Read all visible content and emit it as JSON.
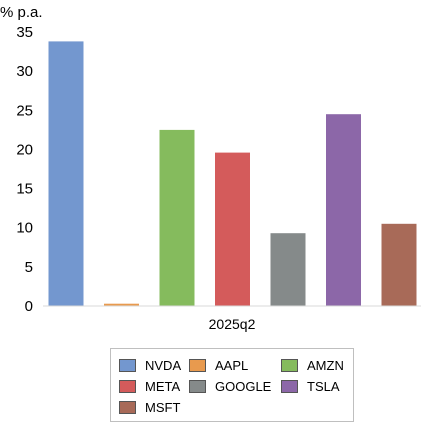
{
  "chart_data": {
    "type": "bar",
    "unit_label": "% p.a.",
    "categories": [
      "2025q2"
    ],
    "ylim": [
      0,
      35
    ],
    "yticks": [
      0,
      5,
      10,
      15,
      20,
      25,
      30,
      35
    ],
    "grid": false,
    "legend_position": "bottom",
    "series": [
      {
        "name": "NVDA",
        "values": [
          33.8
        ],
        "color": "#7397cf"
      },
      {
        "name": "AAPL",
        "values": [
          0.3
        ],
        "color": "#e89a4e"
      },
      {
        "name": "AMZN",
        "values": [
          22.5
        ],
        "color": "#85bb5d"
      },
      {
        "name": "META",
        "values": [
          19.6
        ],
        "color": "#d45b5b"
      },
      {
        "name": "GOOGLE",
        "values": [
          9.3
        ],
        "color": "#858a8a"
      },
      {
        "name": "TSLA",
        "values": [
          24.5
        ],
        "color": "#8c67a8"
      },
      {
        "name": "MSFT",
        "values": [
          10.5
        ],
        "color": "#a86a58"
      }
    ]
  }
}
